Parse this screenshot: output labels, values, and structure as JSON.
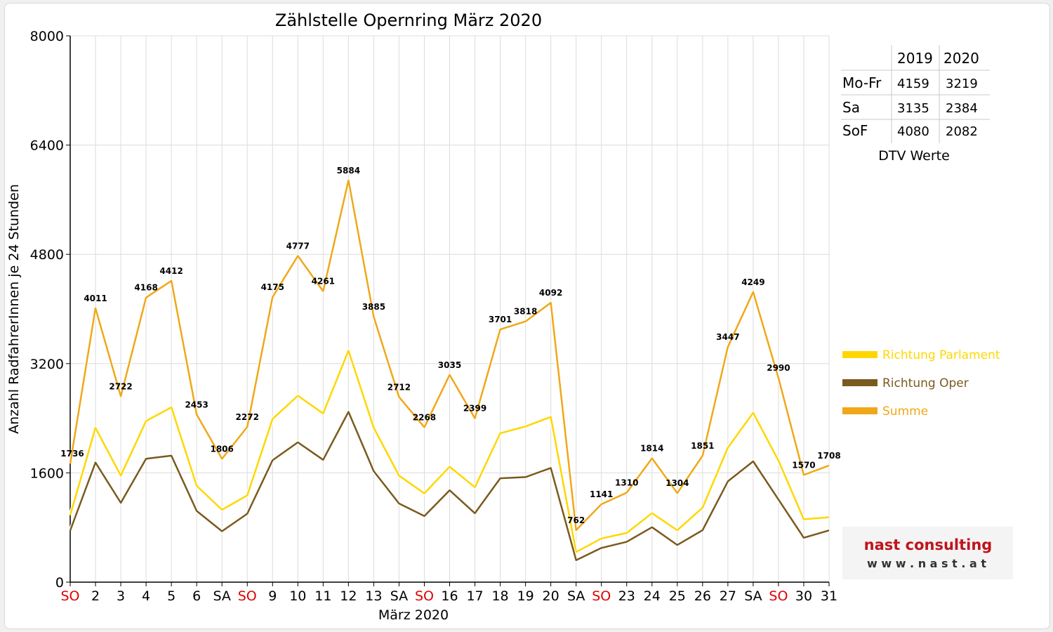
{
  "chart_data": {
    "type": "line",
    "title": "Zählstelle Opernring März 2020",
    "xlabel": "März 2020",
    "ylabel": "Anzahl RadfahrerInnen je 24 Stunden",
    "ylim": [
      0,
      8000
    ],
    "yticks": [
      0,
      1600,
      3200,
      4800,
      6400,
      8000
    ],
    "grid": true,
    "legend_position": "right",
    "categories": [
      "SO",
      "2",
      "3",
      "4",
      "5",
      "6",
      "SA",
      "SO",
      "9",
      "10",
      "11",
      "12",
      "13",
      "SA",
      "SO",
      "16",
      "17",
      "18",
      "19",
      "20",
      "SA",
      "SO",
      "23",
      "24",
      "25",
      "26",
      "27",
      "SA",
      "SO",
      "30",
      "31"
    ],
    "red_categories": [
      0,
      7,
      14,
      21,
      28
    ],
    "series": [
      {
        "name": "Richtung Parlament",
        "color": "#ffd700",
        "values": [
          980,
          2260,
          1560,
          2360,
          2560,
          1410,
          1060,
          1270,
          2390,
          2730,
          2470,
          3390,
          2260,
          1560,
          1300,
          1690,
          1390,
          2180,
          2280,
          2420,
          440,
          640,
          720,
          1010,
          760,
          1090,
          1970,
          2480,
          1780,
          920,
          950
        ]
      },
      {
        "name": "Richtung Oper",
        "color": "#7a5a1e",
        "values": [
          756,
          1751,
          1162,
          1808,
          1852,
          1043,
          746,
          1002,
          1785,
          2047,
          1791,
          2494,
          1625,
          1152,
          968,
          1345,
          1009,
          1521,
          1538,
          1672,
          322,
          501,
          590,
          804,
          544,
          761,
          1477,
          1769,
          1210,
          650,
          758
        ]
      },
      {
        "name": "Summe",
        "color": "#f0a818",
        "values": [
          1736,
          4011,
          2722,
          4168,
          4412,
          2453,
          1806,
          2272,
          4175,
          4777,
          4261,
          5884,
          3885,
          2712,
          2268,
          3035,
          2399,
          3701,
          3818,
          4092,
          762,
          1141,
          1310,
          1814,
          1304,
          1851,
          3447,
          4249,
          2990,
          1570,
          1708
        ]
      }
    ]
  },
  "dtv_table": {
    "headers": [
      "",
      "2019",
      "2020"
    ],
    "rows": [
      {
        "label": "Mo-Fr",
        "v2019": "4159",
        "v2020": "3219"
      },
      {
        "label": "Sa",
        "v2019": "3135",
        "v2020": "2384"
      },
      {
        "label": "SoF",
        "v2019": "4080",
        "v2020": "2082"
      }
    ],
    "caption": "DTV Werte"
  },
  "logo": {
    "name": "nast consulting",
    "url_text": "w w w . n a s t . a t",
    "brand_color": "#c0141c"
  }
}
